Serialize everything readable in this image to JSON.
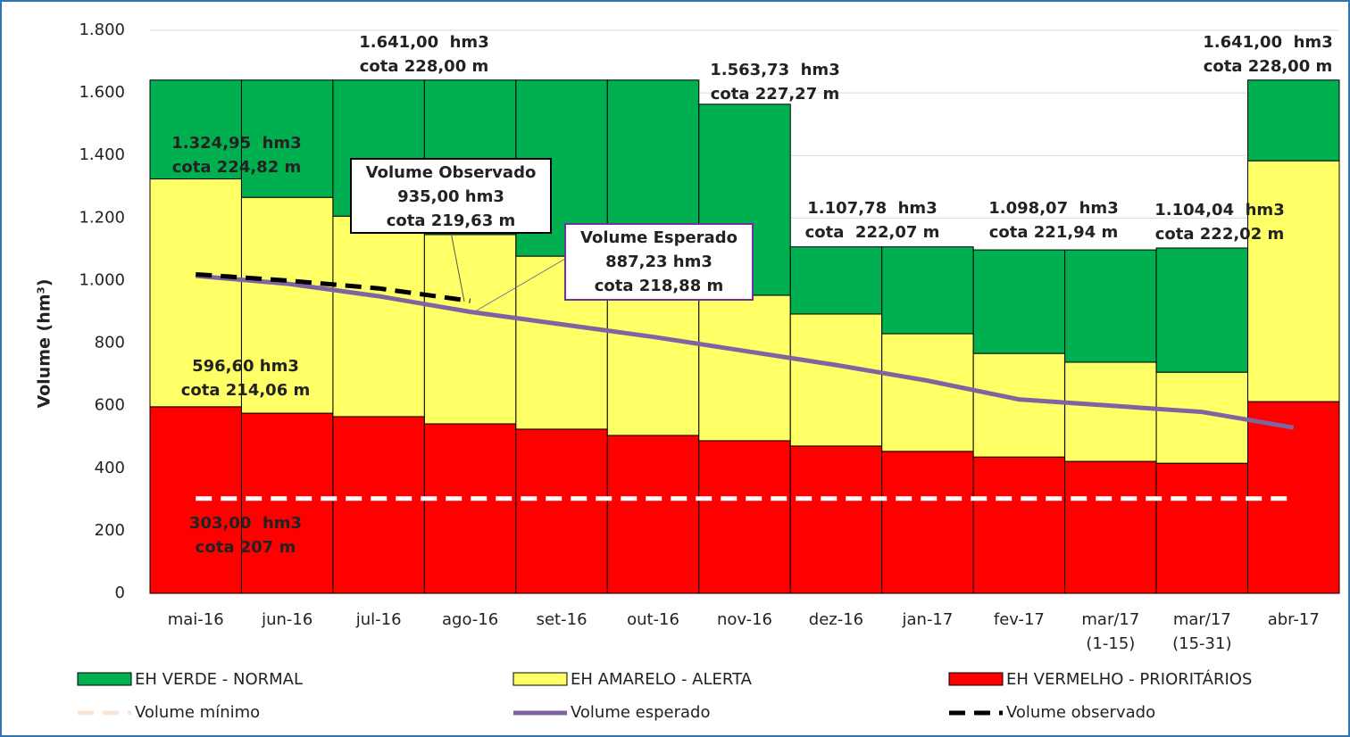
{
  "chart_data": {
    "type": "stacked_bar",
    "y_label": "Volume (hm³)",
    "categories": [
      "mai-16",
      "jun-16",
      "jul-16",
      "ago-16",
      "set-16",
      "out-16",
      "nov-16",
      "dez-16",
      "jan-17",
      "fev-17",
      [
        "mar/17",
        "(1-15)"
      ],
      [
        "mar/17",
        "(15-31)"
      ],
      "abr-17"
    ],
    "series": [
      {
        "name": "EH VERMELHO - PRIORITÁRIOS",
        "color": "#ff0000",
        "values": [
          596.6,
          576,
          565,
          542,
          525,
          505,
          488,
          471,
          454,
          436,
          422,
          416,
          613
        ]
      },
      {
        "name": "EH AMARELO - ALERTA",
        "color": "#ffff66",
        "values": [
          728.35,
          690,
          641,
          605,
          553,
          505,
          465,
          422,
          376,
          331,
          317,
          291,
          770
        ]
      },
      {
        "name": "EH VERDE - NORMAL",
        "color": "#00b050",
        "values": [
          316.05,
          375,
          435,
          494,
          563,
          631,
          610.73,
          214.78,
          277.78,
          331.07,
          359.07,
          397.04,
          258
        ]
      }
    ],
    "lines": [
      {
        "name": "Volume mínimo",
        "color": "#fbe5d6",
        "dash": true,
        "values": [
          303,
          303,
          303,
          303,
          303,
          303,
          303,
          303,
          303,
          303,
          303,
          303,
          303
        ]
      },
      {
        "name": "Volume esperado",
        "color": "#8064a2",
        "dash": false,
        "values": [
          1015,
          990,
          950,
          900,
          860,
          820,
          775,
          730,
          680,
          620,
          600,
          580,
          530
        ]
      },
      {
        "name": "Volume observado",
        "color": "#000000",
        "dash": true,
        "values": [
          1020,
          1000,
          975,
          935,
          null,
          null,
          null,
          null,
          null,
          null,
          null,
          null,
          null
        ]
      }
    ],
    "ylim": [
      0,
      1800
    ],
    "yticks": [
      0,
      200,
      400,
      600,
      800,
      {
        "value": 1000,
        "label": "1.000"
      },
      {
        "value": 1200,
        "label": "1.200"
      },
      {
        "value": 1400,
        "label": "1.400"
      },
      {
        "value": 1600,
        "label": "1.600"
      },
      {
        "value": 1800,
        "label": "1.800"
      }
    ],
    "annotations": [
      {
        "lines": [
          "1.641,00  hm3",
          "cota 228,00 m"
        ],
        "color": "#00b050"
      },
      {
        "lines": [
          "1.324,95  hm3",
          "cota 224,82 m"
        ],
        "color": "#e2f7d0"
      },
      {
        "lines": [
          "1.563,73  hm3",
          "cota 227,27 m"
        ],
        "color": "#00b050"
      },
      {
        "lines": [
          "1.107,78  hm3",
          "cota  222,07 m"
        ],
        "color": "#00b050"
      },
      {
        "lines": [
          "1.098,07  hm3",
          "cota 221,94 m"
        ],
        "color": "#00b050"
      },
      {
        "lines": [
          "1.104,04  hm3",
          "cota 222,02 m"
        ],
        "color": "#00b050"
      },
      {
        "lines": [
          "1.641,00  hm3",
          "cota 228,00 m"
        ],
        "color": "#00b050"
      },
      {
        "lines": [
          "596,60 hm3",
          "cota 214,06 m"
        ],
        "color": "#ff0000"
      },
      {
        "lines": [
          "303,00  hm3",
          "cota 207 m"
        ],
        "color": "#fce4d6"
      }
    ],
    "callouts": [
      {
        "lines": [
          "Volume Observado",
          "935,00 hm3",
          "cota 219,63 m"
        ],
        "color": "#000000"
      },
      {
        "lines": [
          "Volume Esperado",
          "887,23 hm3",
          "cota 218,88 m"
        ],
        "color": "#7030a0"
      }
    ]
  }
}
